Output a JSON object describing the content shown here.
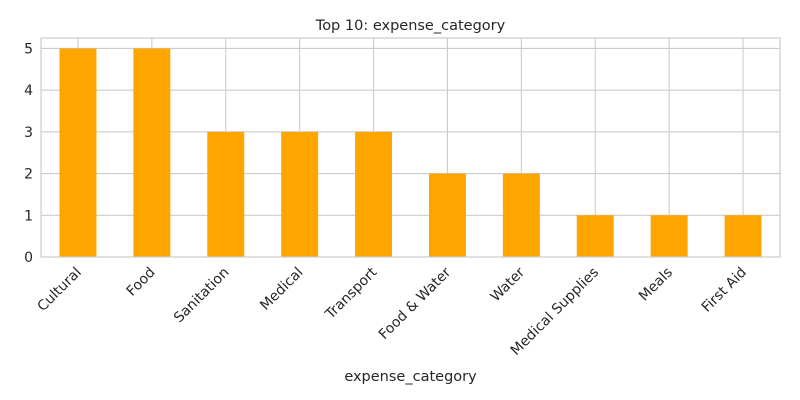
{
  "chart_data": {
    "type": "bar",
    "title": "Top 10: expense_category",
    "xlabel": "expense_category",
    "ylabel": "",
    "categories": [
      "Cultural",
      "Food",
      "Sanitation",
      "Medical",
      "Transport",
      "Food & Water",
      "Water",
      "Medical Supplies",
      "Meals",
      "First Aid"
    ],
    "values": [
      5,
      5,
      3,
      3,
      3,
      2,
      2,
      1,
      1,
      1
    ],
    "ylim": [
      0,
      5.25
    ],
    "yticks": [
      0,
      1,
      2,
      3,
      4,
      5
    ],
    "grid": true,
    "legend": "none",
    "bar_color": "#FFA500",
    "grid_color": "#CCCCCC",
    "frame_color": "#CCCCCC"
  }
}
